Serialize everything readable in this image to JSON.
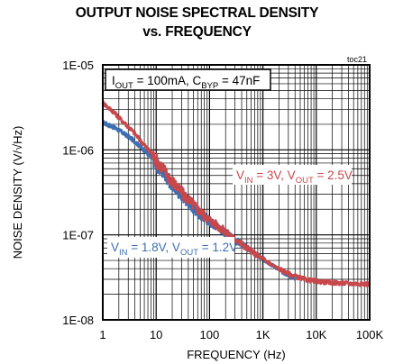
{
  "chart_data": {
    "type": "line",
    "title": "OUTPUT NOISE SPECTRAL DENSITY",
    "subtitle": "vs. FREQUENCY",
    "xlabel": "FREQUENCY (Hz)",
    "ylabel": "NOISE DENSITY (V/√Hz)",
    "x_scale": "log",
    "y_scale": "log",
    "xlim": [
      1,
      100000
    ],
    "ylim": [
      1e-08,
      1e-05
    ],
    "x_ticks": [
      "1",
      "10",
      "100",
      "1K",
      "10K",
      "100K"
    ],
    "y_ticks": [
      "1E-05",
      "1E-06",
      "1E-07",
      "1E-08"
    ],
    "grid": true,
    "figure_id": "toc21",
    "conditions": {
      "main": "I",
      "sub1": "OUT",
      "mid": " = 100mA, C",
      "sub2": "BYP",
      "tail": " = 47nF"
    },
    "series": [
      {
        "name": "VIN = 1.8V, VOUT = 1.2V",
        "color": "#3e6fb0",
        "label": {
          "v1": "V",
          "s1": "IN",
          "m": " = 1.8V, V",
          "s2": "OUT",
          "t": " = 1.2V"
        },
        "x": [
          1,
          1.3,
          1.6,
          2,
          2.5,
          3.2,
          4,
          5,
          6.3,
          8,
          10,
          13,
          16,
          20,
          25,
          32,
          40,
          50,
          63,
          80,
          100,
          130,
          160,
          200,
          250,
          320,
          400,
          500,
          630,
          800,
          1000,
          1300,
          1600,
          2000,
          2500,
          3200,
          4000
        ],
        "y": [
          2.1e-06,
          1.95e-06,
          1.85e-06,
          1.7e-06,
          1.55e-06,
          1.4e-06,
          1.25e-06,
          1.1e-06,
          9.5e-07,
          8.2e-07,
          6.8e-07,
          5.6e-07,
          4.7e-07,
          3.9e-07,
          3.3e-07,
          2.8e-07,
          2.4e-07,
          2.1e-07,
          1.8e-07,
          1.6e-07,
          1.45e-07,
          1.3e-07,
          1.17e-07,
          1.05e-07,
          9.5e-08,
          8.5e-08,
          7.7e-08,
          7e-08,
          6.3e-08,
          5.7e-08,
          5.2e-08,
          4.7e-08,
          4.3e-08,
          3.9e-08,
          3.6e-08,
          3.3e-08,
          3.1e-08
        ]
      },
      {
        "name": "VIN = 3V, VOUT = 2.5V",
        "color": "#c8474a",
        "label": {
          "v1": "V",
          "s1": "IN",
          "m": " = 3V, V",
          "s2": "OUT",
          "t": " = 2.5V"
        },
        "x": [
          1,
          1.3,
          1.6,
          2,
          2.5,
          3.2,
          4,
          5,
          6.3,
          8,
          10,
          13,
          16,
          20,
          25,
          32,
          40,
          50,
          63,
          80,
          100,
          130,
          160,
          200,
          250,
          320,
          400,
          500,
          630,
          800,
          1000,
          1300,
          1600,
          2000,
          2500,
          3200,
          4000,
          5000,
          6300,
          8000,
          10000,
          13000,
          16000,
          20000,
          25000,
          32000,
          40000,
          50000,
          63000,
          80000,
          100000
        ],
        "y": [
          3.6e-06,
          3.1e-06,
          2.8e-06,
          2.4e-06,
          2.1e-06,
          1.8e-06,
          1.55e-06,
          1.3e-06,
          1.1e-06,
          9.2e-07,
          7.5e-07,
          6.2e-07,
          5.1e-07,
          4.3e-07,
          3.6e-07,
          3e-07,
          2.6e-07,
          2.25e-07,
          1.95e-07,
          1.7e-07,
          1.5e-07,
          1.33e-07,
          1.2e-07,
          1.08e-07,
          9.7e-08,
          8.7e-08,
          7.8e-08,
          7e-08,
          6.3e-08,
          5.7e-08,
          5.2e-08,
          4.7e-08,
          4.3e-08,
          4e-08,
          3.7e-08,
          3.45e-08,
          3.25e-08,
          3.1e-08,
          2.98e-08,
          2.9e-08,
          2.85e-08,
          2.8e-08,
          2.77e-08,
          2.74e-08,
          2.72e-08,
          2.7e-08,
          2.68e-08,
          2.67e-08,
          2.66e-08,
          2.65e-08,
          2.64e-08
        ]
      }
    ]
  }
}
